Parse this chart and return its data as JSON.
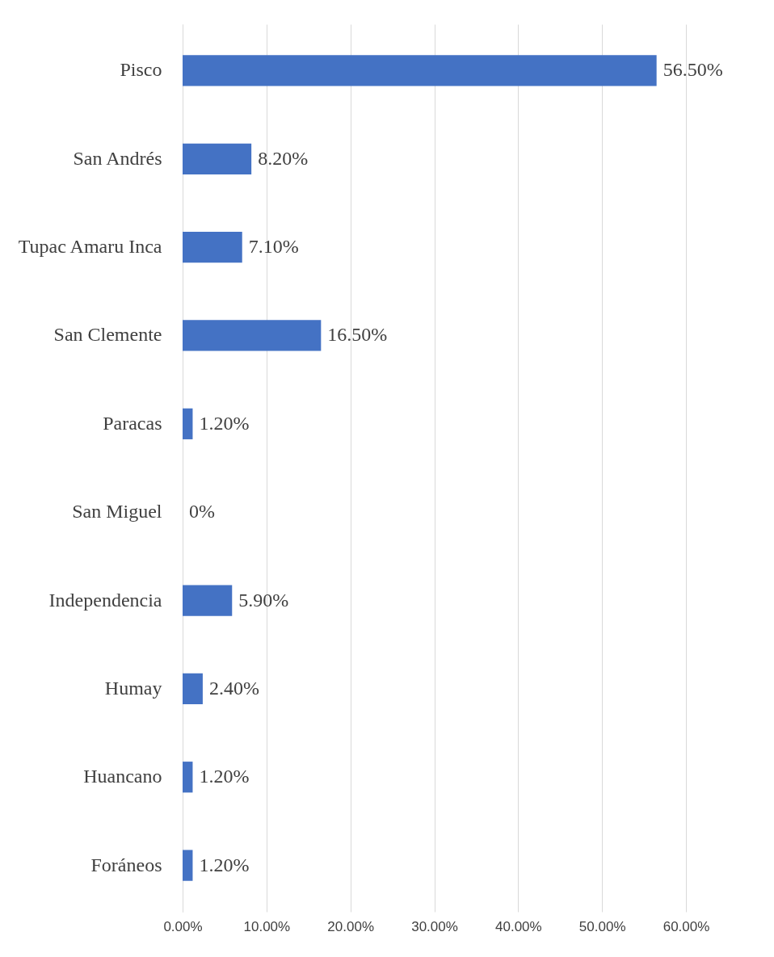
{
  "chart_data": {
    "type": "bar",
    "orientation": "horizontal",
    "categories": [
      "Pisco",
      "San Andrés",
      "Tupac Amaru Inca",
      "San Clemente",
      "Paracas",
      "San Miguel",
      "Independencia",
      "Humay",
      "Huancano",
      "Foráneos"
    ],
    "values": [
      56.5,
      8.2,
      7.1,
      16.5,
      1.2,
      0,
      5.9,
      2.4,
      1.2,
      1.2
    ],
    "value_labels": [
      "56.50%",
      "8.20%",
      "7.10%",
      "16.50%",
      "1.20%",
      "0%",
      "5.90%",
      "2.40%",
      "1.20%",
      "1.20%"
    ],
    "color": "#4472c4",
    "xlim": [
      0,
      60
    ],
    "xticks": [
      {
        "value": 0,
        "label": "0.00%"
      },
      {
        "value": 10,
        "label": "10.00%"
      },
      {
        "value": 20,
        "label": "20.00%"
      },
      {
        "value": 30,
        "label": "30.00%"
      },
      {
        "value": 40,
        "label": "40.00%"
      },
      {
        "value": 50,
        "label": "50.00%"
      },
      {
        "value": 60,
        "label": "60.00%"
      }
    ],
    "grid": "x"
  }
}
